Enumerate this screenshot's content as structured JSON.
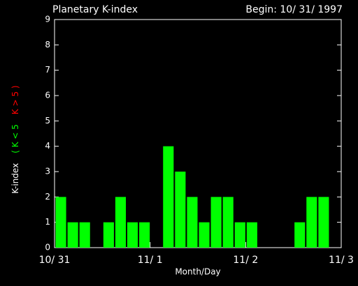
{
  "chart_data": {
    "type": "bar",
    "title": "Planetary K-index",
    "subtitle": "Begin: 10/ 31/ 1997",
    "x_label": "Month/Day",
    "y_label": "K-index",
    "legend_low": "( K < 5",
    "legend_high": "K > 5 )",
    "values": [
      2,
      1,
      1,
      0,
      1,
      2,
      1,
      1,
      0,
      4,
      3,
      2,
      1,
      2,
      2,
      1,
      1,
      0,
      0,
      0,
      1,
      2,
      2,
      0
    ],
    "color": "#00ff00",
    "high_color": "#ff0000",
    "threshold": 5,
    "xlim": [
      0,
      24
    ],
    "xticks": [
      {
        "value": 0,
        "label": "10/ 31"
      },
      {
        "value": 8,
        "label": "11/ 1"
      },
      {
        "value": 16,
        "label": "11/ 2"
      },
      {
        "value": 24,
        "label": "11/ 3"
      }
    ],
    "ylim": [
      0,
      9
    ],
    "yticks": [
      0,
      1,
      2,
      3,
      4,
      5,
      6,
      7,
      8,
      9
    ]
  }
}
